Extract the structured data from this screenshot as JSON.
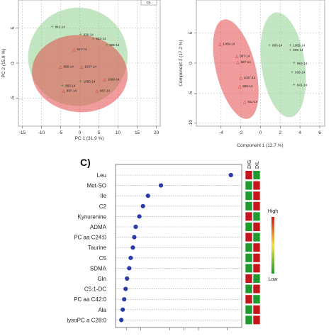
{
  "chart_data": [
    {
      "id": "pca",
      "type": "scatter",
      "title": "",
      "xlabel": "PC 1 (31.9 %)",
      "ylabel": "PC 2 (15.8 %)",
      "xlim": [
        -16,
        21
      ],
      "ylim": [
        -9,
        9
      ],
      "xticks": [
        -15,
        -10,
        -5,
        0,
        5,
        10,
        15,
        20
      ],
      "yticks": [
        -5,
        0,
        5
      ],
      "grid": true,
      "legend": {
        "position": "top-right",
        "entries": [
          "DIL"
        ]
      },
      "series": [
        {
          "name": "DIG",
          "color": "#8fd18f",
          "marker": "plus",
          "points": [
            {
              "label": "841-14",
              "x": -7.2,
              "y": 5.2
            },
            {
              "label": "939-14",
              "x": 0.2,
              "y": 4.1
            },
            {
              "label": "953-14",
              "x": 3.5,
              "y": 3.5
            },
            {
              "label": "995-14",
              "x": 7.0,
              "y": 2.6
            },
            {
              "label": "883-14",
              "x": -4.5,
              "y": -3.2
            },
            {
              "label": "1065-14",
              "x": 0.2,
              "y": -2.6
            }
          ]
        },
        {
          "name": "DIL",
          "color": "#e54b4b",
          "marker": "triangle",
          "points": [
            {
              "label": "911-14",
              "x": -1.5,
              "y": 2.0
            },
            {
              "label": "895-14",
              "x": -5.0,
              "y": -0.5
            },
            {
              "label": "1037-14",
              "x": 0.5,
              "y": -0.5
            },
            {
              "label": "1009-14",
              "x": 6.5,
              "y": -2.3
            },
            {
              "label": "897-14",
              "x": -4.2,
              "y": -3.9
            },
            {
              "label": "987-14",
              "x": 4.5,
              "y": -3.9
            }
          ]
        }
      ],
      "ellipses": [
        {
          "series": "DIG",
          "center": [
            -0.5,
            0.9
          ],
          "rx": 13.0,
          "ry": 7.0,
          "angle_deg": -20
        },
        {
          "series": "DIL",
          "center": [
            0.0,
            -1.5
          ],
          "rx": 12.5,
          "ry": 5.5,
          "angle_deg": 5
        }
      ]
    },
    {
      "id": "plsda",
      "type": "scatter",
      "title": "",
      "xlabel": "Component 1 (12.7 %)",
      "ylabel": "Component 2 (17.2 %)",
      "xlim": [
        -6.5,
        6.5
      ],
      "ylim": [
        -10.5,
        10.5
      ],
      "xticks": [
        -4,
        -2,
        0,
        2,
        4,
        6
      ],
      "yticks": [
        -10,
        -5,
        0,
        5
      ],
      "grid": true,
      "series": [
        {
          "name": "DIG",
          "color": "#8fd18f",
          "marker": "plus",
          "points": [
            {
              "label": "883-14",
              "x": 0.9,
              "y": 3.0
            },
            {
              "label": "1065-14",
              "x": 3.0,
              "y": 3.0
            },
            {
              "label": "995-14",
              "x": 3.0,
              "y": 2.2
            },
            {
              "label": "953-14",
              "x": 3.4,
              "y": 0.0
            },
            {
              "label": "939-14",
              "x": 3.2,
              "y": -1.5
            },
            {
              "label": "841-14",
              "x": 3.4,
              "y": -3.6
            }
          ]
        },
        {
          "name": "DIL",
          "color": "#e54b4b",
          "marker": "triangle",
          "points": [
            {
              "label": "1009-14",
              "x": -4.1,
              "y": 3.2
            },
            {
              "label": "987-14",
              "x": -2.4,
              "y": 1.2
            },
            {
              "label": "897-14",
              "x": -2.3,
              "y": 0.2
            },
            {
              "label": "1037-14",
              "x": -2.0,
              "y": -2.4
            },
            {
              "label": "895-14",
              "x": -2.1,
              "y": -3.8
            },
            {
              "label": "911-14",
              "x": -1.6,
              "y": -6.4
            }
          ]
        }
      ],
      "ellipses": [
        {
          "series": "DIG",
          "center": [
            2.3,
            -0.3
          ],
          "rx": 2.2,
          "ry": 8.8,
          "angle_deg": -8
        },
        {
          "series": "DIL",
          "center": [
            -2.5,
            -1.0
          ],
          "rx": 2.0,
          "ry": 8.5,
          "angle_deg": -14
        }
      ]
    },
    {
      "id": "vip",
      "type": "scatter",
      "panel_label": "C)",
      "title": "",
      "xlabel": "",
      "ylabel": "",
      "xlim": [
        1.05,
        2.8
      ],
      "grid": false,
      "color": "#2a3aa8",
      "features": [
        "Leu",
        "Met-SO",
        "Ile",
        "C2",
        "Kynurenine",
        "ADMA",
        "PC aa C24:0",
        "Taurine",
        "C5",
        "SDMA",
        "Gln",
        "C5:1-DC",
        "PC aa C42:0",
        "Ala",
        "lysoPC a C28:0"
      ],
      "values": [
        2.65,
        1.68,
        1.5,
        1.43,
        1.38,
        1.33,
        1.31,
        1.29,
        1.26,
        1.24,
        1.21,
        1.19,
        1.17,
        1.15,
        1.13
      ],
      "heatmap": {
        "columns": [
          "DIG",
          "DIL"
        ],
        "cells": [
          [
            "red",
            "green"
          ],
          [
            "green",
            "red"
          ],
          [
            "green",
            "red"
          ],
          [
            "green",
            "red"
          ],
          [
            "red",
            "green"
          ],
          [
            "green",
            "red"
          ],
          [
            "red",
            "green"
          ],
          [
            "green",
            "red"
          ],
          [
            "green",
            "red"
          ],
          [
            "green",
            "red"
          ],
          [
            "red",
            "green"
          ],
          [
            "green",
            "red"
          ],
          [
            "red",
            "green"
          ],
          [
            "green",
            "red"
          ],
          [
            "green",
            "red"
          ]
        ]
      },
      "legend": {
        "high": "High",
        "low": "Low"
      }
    }
  ]
}
